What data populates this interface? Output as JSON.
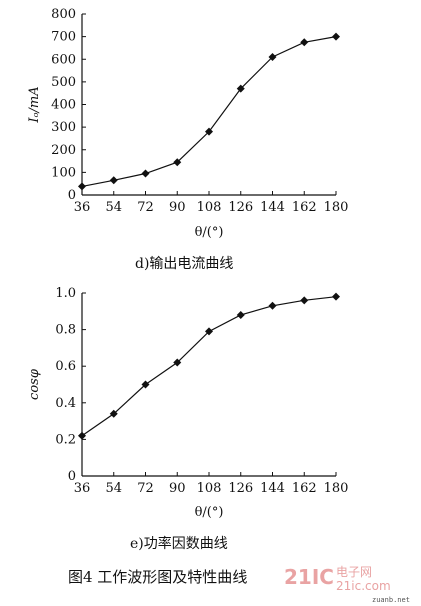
{
  "chart_data": [
    {
      "type": "line",
      "ylabel": "Iₒ/mA",
      "xlabel": "θ/(°)",
      "caption": "d)输出电流曲线",
      "x": [
        36,
        54,
        72,
        90,
        108,
        126,
        144,
        162,
        180
      ],
      "values": [
        38,
        65,
        95,
        145,
        280,
        470,
        610,
        675,
        700
      ],
      "xticks": [
        "36",
        "54",
        "72",
        "90",
        "108",
        "126",
        "144",
        "162",
        "180"
      ],
      "yticks": [
        "0",
        "100",
        "200",
        "300",
        "400",
        "500",
        "600",
        "700",
        "800"
      ],
      "xlim": [
        36,
        180
      ],
      "ylim": [
        0,
        800
      ],
      "marker": "diamond",
      "grid": false
    },
    {
      "type": "line",
      "ylabel": "cosφ",
      "xlabel": "θ/(°)",
      "caption": "e)功率因数曲线",
      "x": [
        36,
        54,
        72,
        90,
        108,
        126,
        144,
        162,
        180
      ],
      "values": [
        0.22,
        0.34,
        0.5,
        0.62,
        0.79,
        0.88,
        0.93,
        0.96,
        0.98
      ],
      "xticks": [
        "36",
        "54",
        "72",
        "90",
        "108",
        "126",
        "144",
        "162",
        "180"
      ],
      "yticks": [
        "0",
        "0.2",
        "0.4",
        "0.6",
        "0.8",
        "1.0"
      ],
      "xlim": [
        36,
        180
      ],
      "ylim": [
        0,
        1.0
      ],
      "marker": "diamond",
      "grid": false
    }
  ],
  "figure_caption": "图4  工作波形图及特性曲线",
  "watermark": {
    "brand": "21IC",
    "cn": "电子网",
    "url": "21ic.com",
    "small": "zuanb.net"
  }
}
